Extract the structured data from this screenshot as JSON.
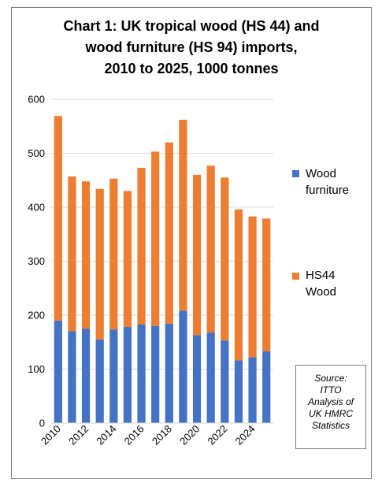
{
  "title_lines": [
    "Chart 1: UK tropical wood (HS 44) and",
    "wood furniture (HS 94) imports,",
    "2010 to 2025, 1000 tonnes"
  ],
  "legend": [
    {
      "label_lines": [
        "Wood",
        "furniture"
      ],
      "color": "#4472c4"
    },
    {
      "label_lines": [
        "HS44",
        "Wood"
      ],
      "color": "#ed7d31"
    }
  ],
  "source_lines": [
    "Source:",
    "ITTO",
    "Analysis of",
    "UK HMRC",
    "Statistics"
  ],
  "chart_data": {
    "type": "bar",
    "stacked": true,
    "title": "Chart 1: UK tropical wood (HS 44) and wood furniture (HS 94) imports, 2010 to 2025, 1000 tonnes",
    "categories": [
      "2010",
      "2011",
      "2012",
      "2013",
      "2014",
      "2015",
      "2016",
      "2017",
      "2018",
      "2019",
      "2020",
      "2021",
      "2022",
      "2023",
      "2024",
      "2025"
    ],
    "x_tick_labels": [
      "2010",
      "",
      "2012",
      "",
      "2014",
      "",
      "2016",
      "",
      "2018",
      "",
      "2020",
      "",
      "2022",
      "",
      "2024",
      ""
    ],
    "y_ticks": [
      "0",
      "100",
      "200",
      "300",
      "400",
      "500",
      "600"
    ],
    "ylim": [
      0,
      600
    ],
    "grid": true,
    "legend_position": "right",
    "series": [
      {
        "name": "Wood furniture",
        "color": "#4472c4",
        "values": [
          190,
          170,
          175,
          155,
          173,
          178,
          183,
          180,
          184,
          208,
          163,
          168,
          153,
          116,
          122,
          133
        ]
      },
      {
        "name": "HS44 Wood",
        "color": "#ed7d31",
        "values": [
          379,
          287,
          273,
          279,
          280,
          252,
          290,
          323,
          336,
          354,
          297,
          309,
          302,
          280,
          261,
          246
        ]
      }
    ]
  }
}
